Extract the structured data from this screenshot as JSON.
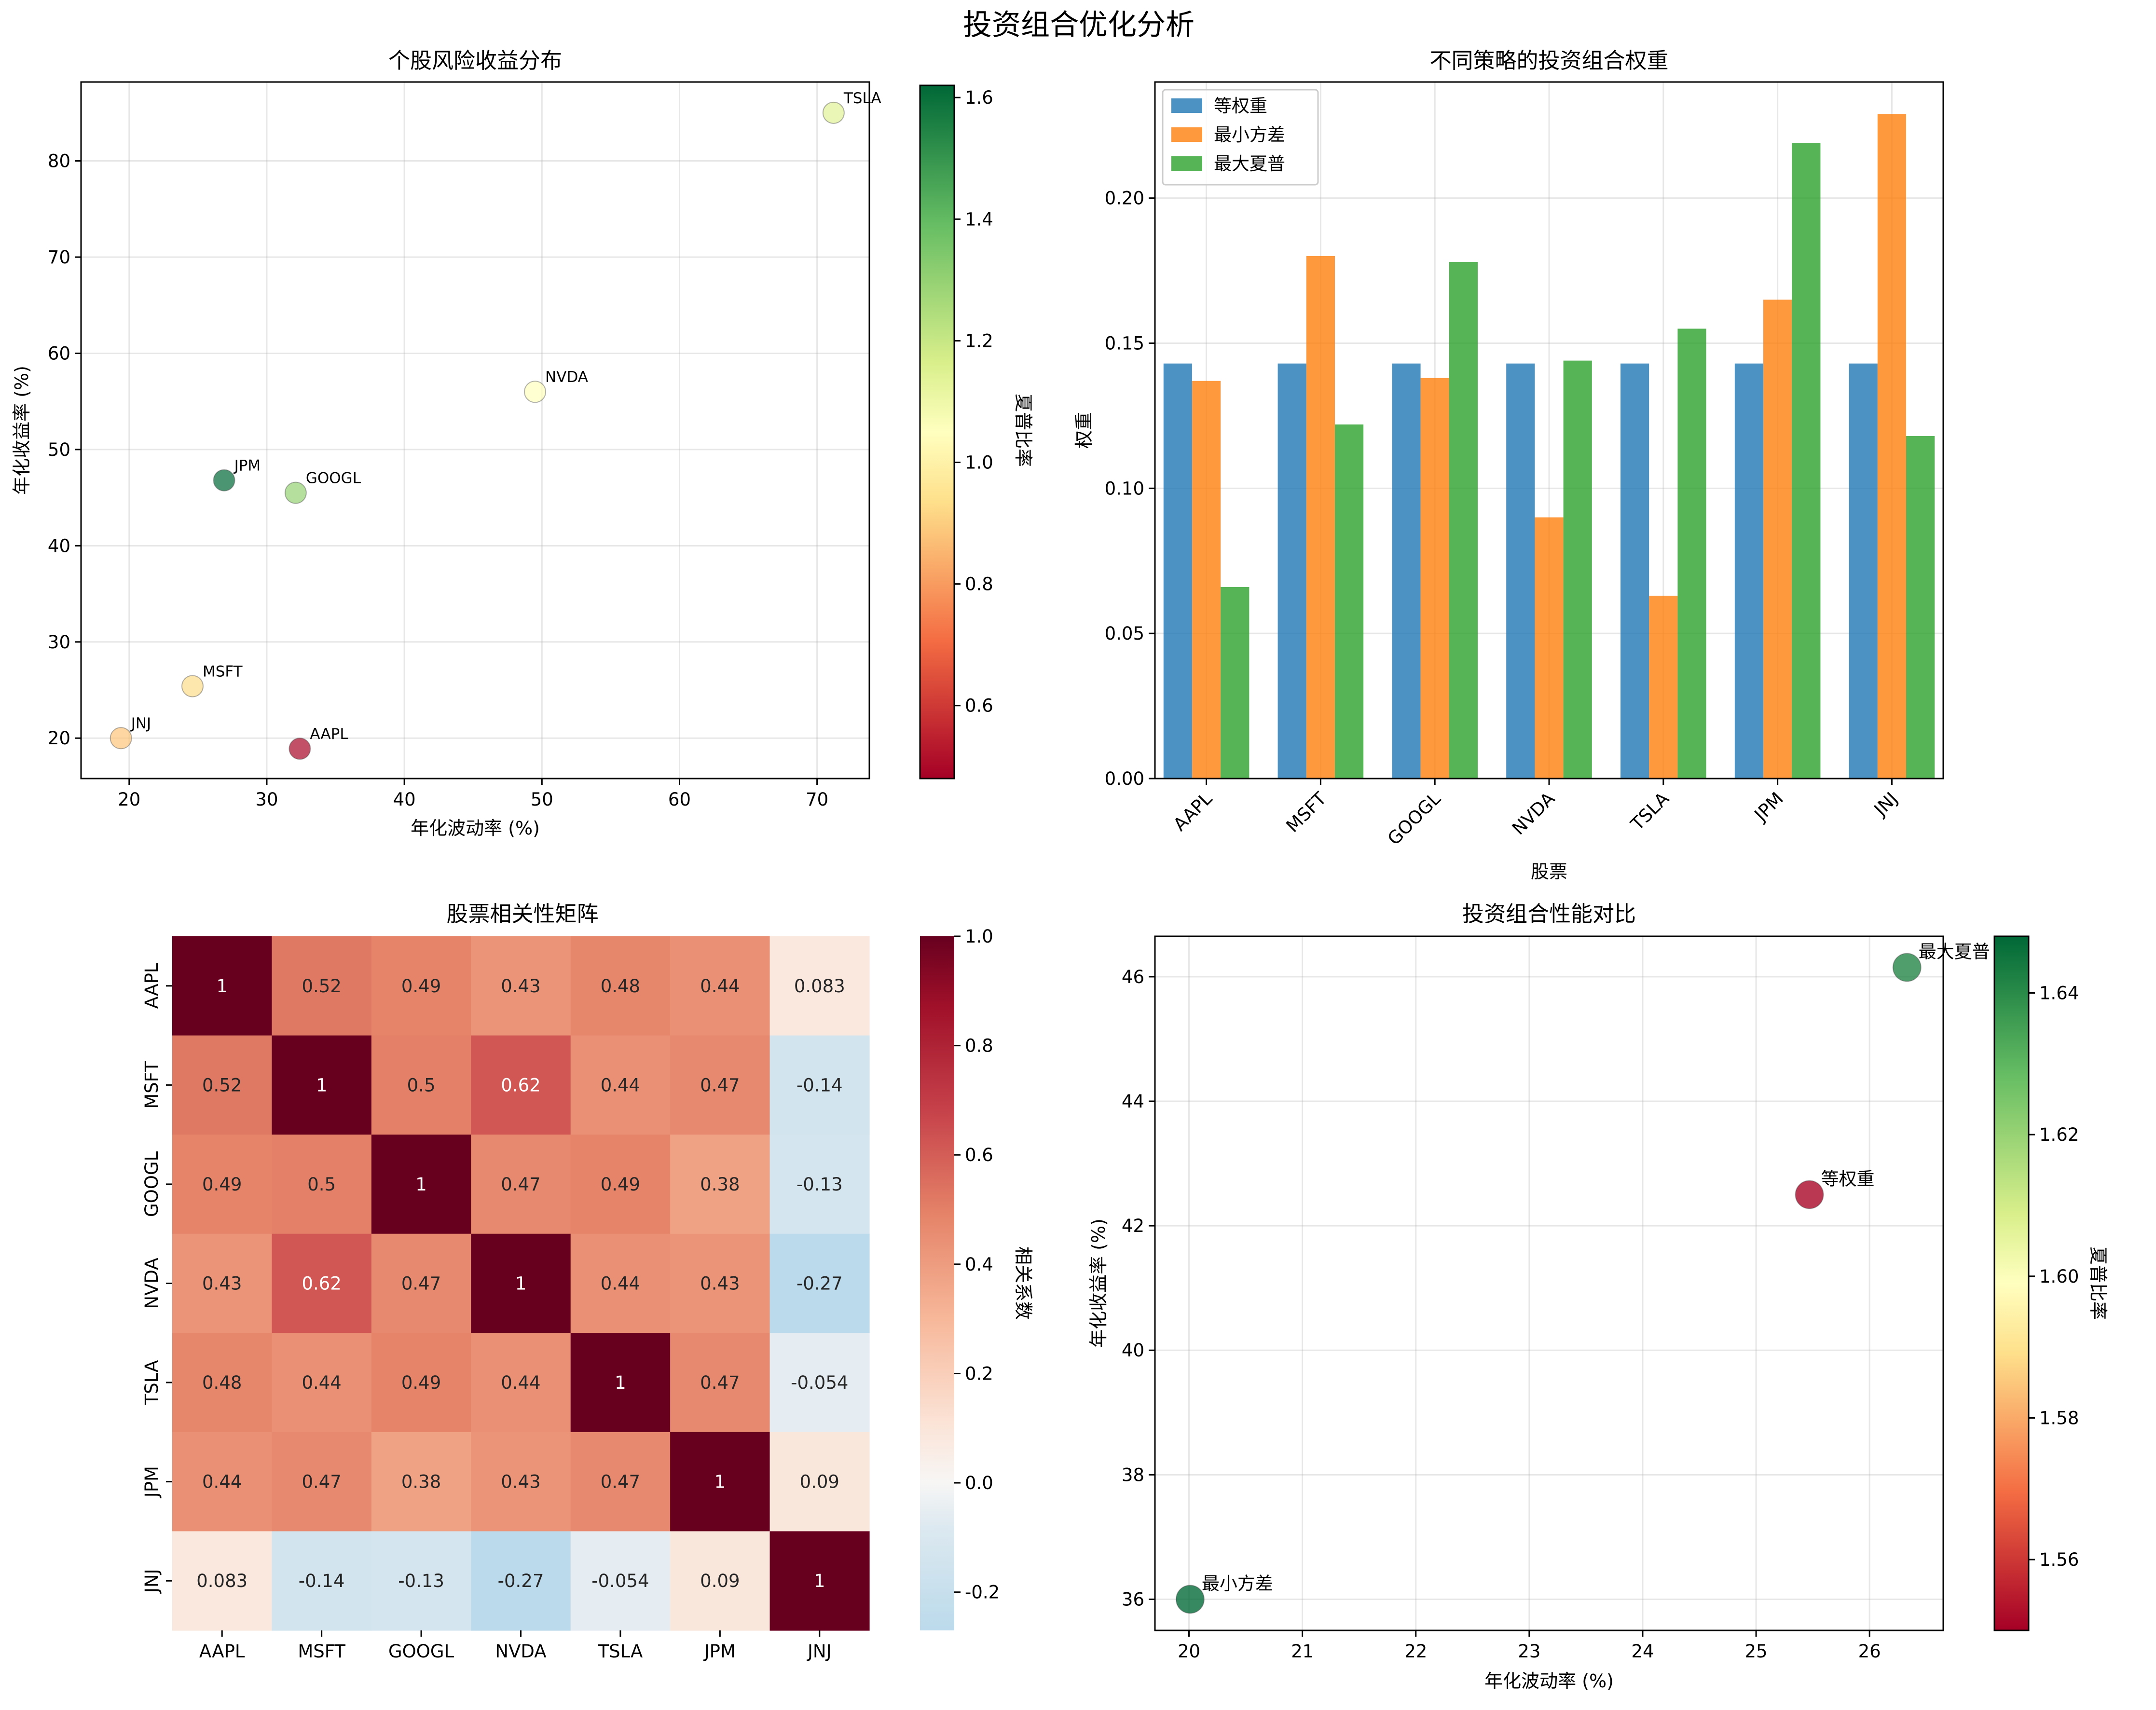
{
  "figure": {
    "suptitle": "投资组合优化分析"
  },
  "chart_data": [
    {
      "type": "scatter",
      "title": "个股风险收益分布",
      "xlabel": "年化波动率 (%)",
      "ylabel": "年化收益率 (%)",
      "xlim": [
        16.5,
        73.8
      ],
      "ylim": [
        15.8,
        88.2
      ],
      "xticks": [
        "20",
        "30",
        "40",
        "50",
        "60",
        "70"
      ],
      "yticks": [
        "20",
        "30",
        "40",
        "50",
        "60",
        "70",
        "80"
      ],
      "colorbar": {
        "label": "夏普比率",
        "range": [
          0.48,
          1.62
        ],
        "ticks": [
          "0.6",
          "0.8",
          "1.0",
          "1.2",
          "1.4",
          "1.6"
        ]
      },
      "points": [
        {
          "label": "AAPL",
          "x": 32.4,
          "y": 18.9,
          "sharpe": 0.49
        },
        {
          "label": "MSFT",
          "x": 24.6,
          "y": 25.4,
          "sharpe": 0.93
        },
        {
          "label": "GOOGL",
          "x": 32.1,
          "y": 45.5,
          "sharpe": 1.3
        },
        {
          "label": "NVDA",
          "x": 49.5,
          "y": 56.0,
          "sharpe": 1.05
        },
        {
          "label": "TSLA",
          "x": 71.2,
          "y": 85.0,
          "sharpe": 1.14
        },
        {
          "label": "JPM",
          "x": 26.9,
          "y": 46.8,
          "sharpe": 1.62
        },
        {
          "label": "JNJ",
          "x": 19.4,
          "y": 20.0,
          "sharpe": 0.88
        }
      ]
    },
    {
      "type": "bar",
      "title": "不同策略的投资组合权重",
      "xlabel": "股票",
      "ylabel": "权重",
      "ylim": [
        0,
        0.24
      ],
      "yticks": [
        "0.00",
        "0.05",
        "0.10",
        "0.15",
        "0.20"
      ],
      "categories": [
        "AAPL",
        "MSFT",
        "GOOGL",
        "NVDA",
        "TSLA",
        "JPM",
        "JNJ"
      ],
      "series": [
        {
          "name": "等权重",
          "color": "#1f77b4",
          "values": [
            0.143,
            0.143,
            0.143,
            0.143,
            0.143,
            0.143,
            0.143
          ]
        },
        {
          "name": "最小方差",
          "color": "#ff7f0e",
          "values": [
            0.137,
            0.18,
            0.138,
            0.09,
            0.063,
            0.165,
            0.229
          ]
        },
        {
          "name": "最大夏普",
          "color": "#2ca02c",
          "values": [
            0.066,
            0.122,
            0.178,
            0.144,
            0.155,
            0.219,
            0.118
          ]
        }
      ]
    },
    {
      "type": "heatmap",
      "title": "股票相关性矩阵",
      "labels": [
        "AAPL",
        "MSFT",
        "GOOGL",
        "NVDA",
        "TSLA",
        "JPM",
        "JNJ"
      ],
      "colorbar": {
        "label": "相关系数",
        "range": [
          -0.27,
          1.0
        ],
        "ticks": [
          "-0.2",
          "0.0",
          "0.2",
          "0.4",
          "0.6",
          "0.8",
          "1.0"
        ]
      },
      "values": [
        [
          1,
          0.52,
          0.49,
          0.43,
          0.48,
          0.44,
          0.083
        ],
        [
          0.52,
          1,
          0.5,
          0.62,
          0.44,
          0.47,
          -0.14
        ],
        [
          0.49,
          0.5,
          1,
          0.47,
          0.49,
          0.38,
          -0.13
        ],
        [
          0.43,
          0.62,
          0.47,
          1,
          0.44,
          0.43,
          -0.27
        ],
        [
          0.48,
          0.44,
          0.49,
          0.44,
          1,
          0.47,
          -0.054
        ],
        [
          0.44,
          0.47,
          0.38,
          0.43,
          0.47,
          1,
          0.09
        ],
        [
          0.083,
          -0.14,
          -0.13,
          -0.27,
          -0.054,
          0.09,
          1
        ]
      ]
    },
    {
      "type": "scatter",
      "title": "投资组合性能对比",
      "xlabel": "年化波动率 (%)",
      "ylabel": "年化收益率 (%)",
      "xlim": [
        19.7,
        26.65
      ],
      "ylim": [
        35.5,
        46.65
      ],
      "xticks": [
        "20",
        "21",
        "22",
        "23",
        "24",
        "25",
        "26"
      ],
      "yticks": [
        "36",
        "38",
        "40",
        "42",
        "44",
        "46"
      ],
      "colorbar": {
        "label": "夏普比率",
        "range": [
          1.55,
          1.648
        ],
        "ticks": [
          "1.56",
          "1.58",
          "1.60",
          "1.62",
          "1.64"
        ]
      },
      "points": [
        {
          "label": "等权重",
          "x": 25.47,
          "y": 42.5,
          "sharpe": 1.551
        },
        {
          "label": "最小方差",
          "x": 20.01,
          "y": 36.0,
          "sharpe": 1.647
        },
        {
          "label": "最大夏普",
          "x": 26.33,
          "y": 46.15,
          "sharpe": 1.641
        }
      ]
    }
  ]
}
